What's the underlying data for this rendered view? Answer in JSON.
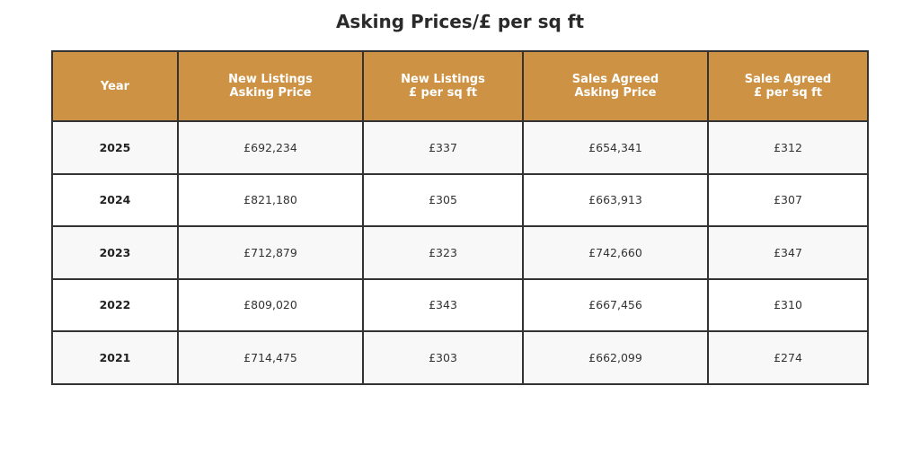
{
  "chart_data": {
    "type": "table",
    "title": "Asking Prices/£ per sq ft",
    "columns": [
      "Year",
      "New Listings\nAsking Price",
      "New Listings\n£ per sq ft",
      "Sales Agreed\nAsking Price",
      "Sales Agreed\n£ per sq ft"
    ],
    "rows": [
      [
        "2025",
        "£692,234",
        "£337",
        "£654,341",
        "£312"
      ],
      [
        "2024",
        "£821,180",
        "£305",
        "£663,913",
        "£307"
      ],
      [
        "2023",
        "£712,879",
        "£323",
        "£742,660",
        "£347"
      ],
      [
        "2022",
        "£809,020",
        "£343",
        "£667,456",
        "£310"
      ],
      [
        "2021",
        "£714,475",
        "£303",
        "£662,099",
        "£274"
      ]
    ],
    "colors": {
      "header": "#CD9243",
      "header_text": "#ffffff",
      "row_alt": "#f8f8f8"
    }
  }
}
